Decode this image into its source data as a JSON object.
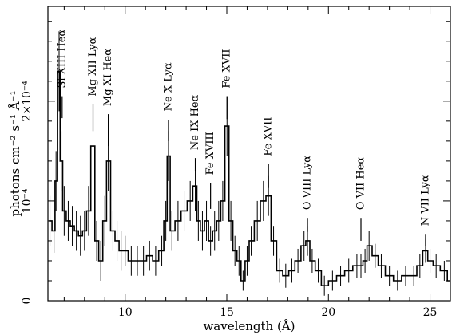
{
  "chart_data": {
    "type": "line",
    "title": "",
    "xlabel": "wavelength (Å)",
    "ylabel": "photons cm⁻² s⁻¹ Å⁻¹",
    "xlim": [
      6.2,
      26.0
    ],
    "ylim": [
      0,
      0.000295
    ],
    "x_ticks": [
      {
        "value": 10,
        "label": "10"
      },
      {
        "value": 15,
        "label": "15"
      },
      {
        "value": 20,
        "label": "20"
      },
      {
        "value": 25,
        "label": "25"
      }
    ],
    "y_ticks": [
      {
        "value": 0,
        "label": "0"
      },
      {
        "value": 0.0001,
        "label": "10⁻⁴"
      },
      {
        "value": 0.0002,
        "label": "2×10⁻⁴"
      }
    ],
    "grid": false,
    "legend": "none",
    "series": [
      {
        "color": "#000000",
        "error_bars": true,
        "x": [
          6.3,
          6.5,
          6.6,
          6.75,
          6.85,
          7.0,
          7.2,
          7.4,
          7.6,
          7.8,
          8.0,
          8.2,
          8.42,
          8.6,
          8.8,
          9.0,
          9.17,
          9.4,
          9.6,
          9.8,
          10.0,
          10.3,
          10.6,
          10.9,
          11.2,
          11.5,
          11.8,
          12.0,
          12.13,
          12.3,
          12.6,
          12.9,
          13.2,
          13.45,
          13.6,
          13.8,
          14.0,
          14.2,
          14.4,
          14.6,
          14.8,
          15.01,
          15.2,
          15.4,
          15.6,
          15.8,
          16.0,
          16.2,
          16.5,
          16.8,
          17.05,
          17.3,
          17.6,
          17.9,
          18.2,
          18.5,
          18.8,
          18.97,
          19.2,
          19.5,
          19.8,
          20.2,
          20.6,
          21.0,
          21.4,
          21.8,
          21.6,
          22.0,
          22.3,
          22.6,
          23.0,
          23.4,
          23.8,
          24.2,
          24.5,
          24.78,
          25.0,
          25.3,
          25.7,
          26.0
        ],
        "y": [
          8e-05,
          7e-05,
          0.00012,
          0.00023,
          0.00014,
          9e-05,
          8e-05,
          7.5e-05,
          7e-05,
          6.5e-05,
          7e-05,
          9e-05,
          0.000155,
          6e-05,
          4e-05,
          8e-05,
          0.00014,
          7e-05,
          6e-05,
          5e-05,
          5e-05,
          4e-05,
          4e-05,
          4e-05,
          4.5e-05,
          4e-05,
          5e-05,
          8e-05,
          0.000145,
          7e-05,
          8e-05,
          9e-05,
          0.0001,
          0.000115,
          8e-05,
          7e-05,
          8e-05,
          6e-05,
          7e-05,
          8e-05,
          0.0001,
          0.000175,
          8e-05,
          5e-05,
          4e-05,
          2e-05,
          4e-05,
          6e-05,
          8e-05,
          0.0001,
          0.000105,
          6e-05,
          3e-05,
          2.5e-05,
          3e-05,
          4e-05,
          5.5e-05,
          6e-05,
          4e-05,
          3e-05,
          1.5e-05,
          2e-05,
          2.5e-05,
          3e-05,
          3.5e-05,
          4e-05,
          3.5e-05,
          5.5e-05,
          4.5e-05,
          3.5e-05,
          2.5e-05,
          2e-05,
          2.5e-05,
          2.5e-05,
          3.5e-05,
          5e-05,
          4e-05,
          3.5e-05,
          3e-05,
          2e-05
        ],
        "errors": [
          2.5e-05,
          2.2e-05,
          3e-05,
          4e-05,
          3e-05,
          2.5e-05,
          2e-05,
          2e-05,
          2e-05,
          2e-05,
          2e-05,
          2.5e-05,
          3e-05,
          2e-05,
          2e-05,
          2.5e-05,
          3e-05,
          2e-05,
          2e-05,
          2e-05,
          1.5e-05,
          1.5e-05,
          1.5e-05,
          1.5e-05,
          1.5e-05,
          1.5e-05,
          1.5e-05,
          2e-05,
          2.5e-05,
          2e-05,
          2e-05,
          2e-05,
          2e-05,
          2.5e-05,
          2e-05,
          2e-05,
          2e-05,
          1.5e-05,
          2e-05,
          2e-05,
          2e-05,
          3e-05,
          2e-05,
          1.5e-05,
          1.5e-05,
          1e-05,
          1.5e-05,
          1.5e-05,
          2e-05,
          2e-05,
          2e-05,
          1.5e-05,
          1.2e-05,
          1.2e-05,
          1.2e-05,
          1.2e-05,
          1.5e-05,
          1.5e-05,
          1.2e-05,
          1.2e-05,
          1e-05,
          1e-05,
          1e-05,
          1.2e-05,
          1.2e-05,
          1.2e-05,
          1.2e-05,
          1.5e-05,
          1.2e-05,
          1.2e-05,
          1e-05,
          1e-05,
          1e-05,
          1e-05,
          1.2e-05,
          1.2e-05,
          1.2e-05,
          1.2e-05,
          1e-05,
          1e-05
        ]
      }
    ],
    "annotations": [
      {
        "text": "Si XIII Heα",
        "line_x": 6.9,
        "line_top_y": 0.000205,
        "line_bottom_y": 0.000183,
        "label_bottom_y": 0.000213
      },
      {
        "text": "Mg XII Lyα",
        "line_x": 8.42,
        "line_top_y": 0.000197,
        "line_bottom_y": 0.00017,
        "label_bottom_y": 0.000205
      },
      {
        "text": "Mg XI Heα",
        "line_x": 9.17,
        "line_top_y": 0.000187,
        "line_bottom_y": 0.000155,
        "label_bottom_y": 0.000195
      },
      {
        "text": "Ne X Lyα",
        "line_x": 12.13,
        "line_top_y": 0.000181,
        "line_bottom_y": 0.00016,
        "label_bottom_y": 0.00019
      },
      {
        "text": "Ne IX Heα",
        "line_x": 13.45,
        "line_top_y": 0.000143,
        "line_bottom_y": 0.00013,
        "label_bottom_y": 0.000151
      },
      {
        "text": "Fe XVIII",
        "line_x": 14.2,
        "line_top_y": 0.000118,
        "line_bottom_y": 9.2e-05,
        "label_bottom_y": 0.000126
      },
      {
        "text": "Fe XVII",
        "line_x": 15.01,
        "line_top_y": 0.000205,
        "line_bottom_y": 0.000182,
        "label_bottom_y": 0.000213
      },
      {
        "text": "Fe XVII",
        "line_x": 17.05,
        "line_top_y": 0.000137,
        "line_bottom_y": 0.000113,
        "label_bottom_y": 0.000145
      },
      {
        "text": "O VIII Lyα",
        "line_x": 18.97,
        "line_top_y": 8.3e-05,
        "line_bottom_y": 6.9e-05,
        "label_bottom_y": 9.1e-05
      },
      {
        "text": "O VII Heα",
        "line_x": 21.6,
        "line_top_y": 8.3e-05,
        "line_bottom_y": 6e-05,
        "label_bottom_y": 9.1e-05
      },
      {
        "text": "N VII Lyα",
        "line_x": 24.78,
        "line_top_y": 6.7e-05,
        "line_bottom_y": 5.5e-05,
        "label_bottom_y": 7.5e-05
      }
    ]
  }
}
